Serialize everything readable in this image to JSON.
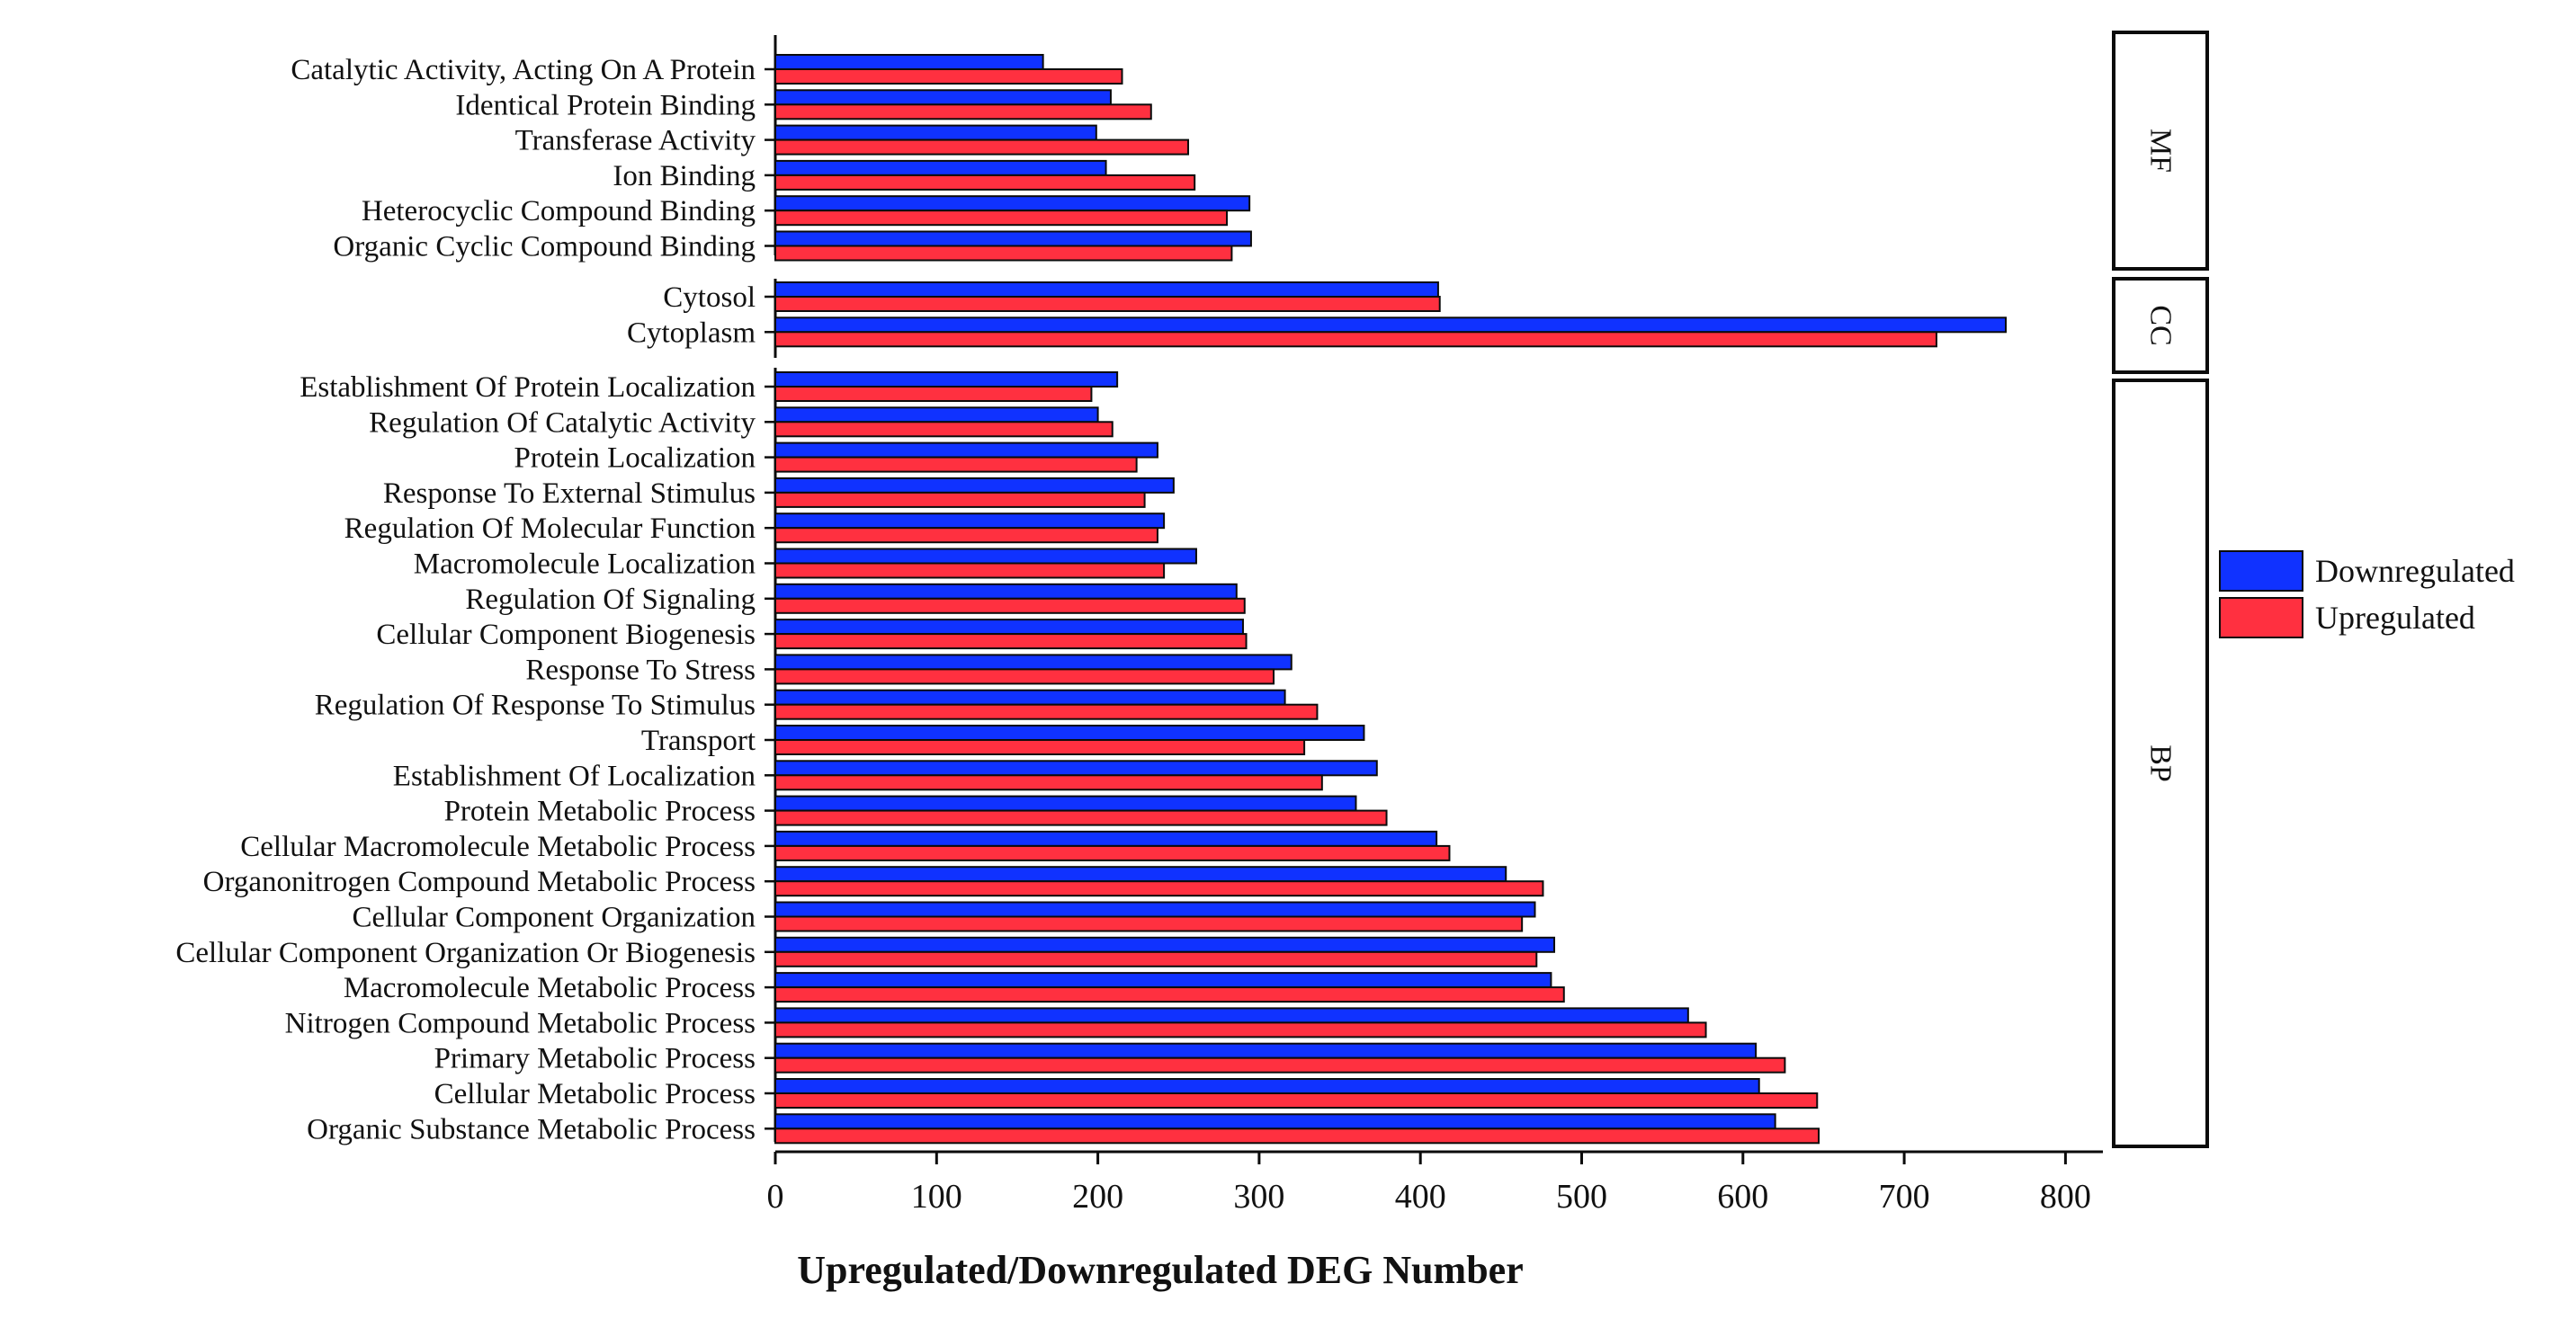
{
  "colors": {
    "downregulated": "#1032ff",
    "upregulated": "#ff3040",
    "outline": "#0b0b0b",
    "background": "#ffffff"
  },
  "chart_data": {
    "type": "bar",
    "orientation": "horizontal",
    "xlabel": "Upregulated/Downregulated DEG Number",
    "xlim": [
      0,
      840
    ],
    "xticks": [
      0,
      100,
      200,
      300,
      400,
      500,
      600,
      700,
      800
    ],
    "legend": {
      "position": "right",
      "entries": [
        "Downregulated",
        "Upregulated"
      ]
    },
    "series_names": [
      "Downregulated",
      "Upregulated"
    ],
    "groups": [
      {
        "name": "MF",
        "categories": [
          "Catalytic Activity, Acting On A Protein",
          "Identical Protein Binding",
          "Transferase Activity",
          "Ion Binding",
          "Heterocyclic Compound Binding",
          "Organic Cyclic Compound Binding"
        ],
        "downregulated": [
          166,
          208,
          199,
          205,
          294,
          295
        ],
        "upregulated": [
          215,
          233,
          256,
          260,
          280,
          283
        ]
      },
      {
        "name": "CC",
        "categories": [
          "Cytosol",
          "Cytoplasm"
        ],
        "downregulated": [
          411,
          763
        ],
        "upregulated": [
          412,
          720
        ]
      },
      {
        "name": "BP",
        "categories": [
          "Establishment Of Protein Localization",
          "Regulation Of Catalytic Activity",
          "Protein Localization",
          "Response To External Stimulus",
          "Regulation Of Molecular Function",
          "Macromolecule Localization",
          "Regulation Of Signaling",
          "Cellular Component Biogenesis",
          "Response To Stress",
          "Regulation Of Response To Stimulus",
          "Transport",
          "Establishment Of Localization",
          "Protein Metabolic Process",
          "Cellular Macromolecule Metabolic Process",
          "Organonitrogen Compound Metabolic Process",
          "Cellular Component Organization",
          "Cellular Component Organization Or Biogenesis",
          "Macromolecule Metabolic Process",
          "Nitrogen Compound Metabolic Process",
          "Primary Metabolic Process",
          "Cellular Metabolic Process",
          "Organic Substance Metabolic Process"
        ],
        "downregulated": [
          212,
          200,
          237,
          247,
          241,
          261,
          286,
          290,
          320,
          316,
          365,
          373,
          360,
          410,
          453,
          471,
          483,
          481,
          566,
          608,
          610,
          620
        ],
        "upregulated": [
          196,
          209,
          224,
          229,
          237,
          241,
          291,
          292,
          309,
          336,
          328,
          339,
          379,
          418,
          476,
          463,
          472,
          489,
          577,
          626,
          646,
          647
        ]
      }
    ]
  }
}
